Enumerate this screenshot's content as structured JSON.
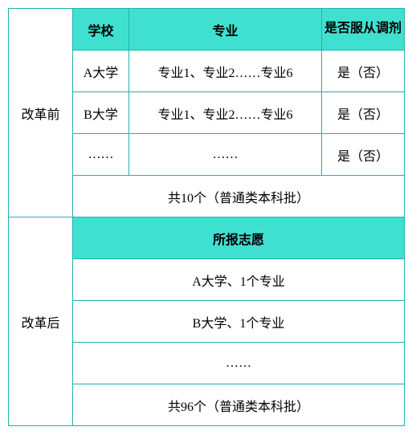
{
  "before": {
    "sideLabel": "改革前",
    "headers": {
      "school": "学校",
      "major": "专业",
      "adjust": "是否服从调剂"
    },
    "rows": [
      {
        "school": "A大学",
        "major": "专业1、专业2……专业6",
        "adjust": "是（否）"
      },
      {
        "school": "B大学",
        "major": "专业1、专业2……专业6",
        "adjust": "是（否）"
      },
      {
        "school": "……",
        "major": "……",
        "adjust": "是（否）"
      }
    ],
    "summary": "共10个（普通类本科批）"
  },
  "after": {
    "sideLabel": "改革后",
    "header": "所报志愿",
    "rows": [
      "A大学、1个专业",
      "B大学、1个专业",
      "……"
    ],
    "summary": "共96个（普通类本科批）"
  },
  "colors": {
    "headerBg": "#40e0d0",
    "border": "#20b2aa",
    "text": "#000000",
    "bg": "#ffffff"
  }
}
